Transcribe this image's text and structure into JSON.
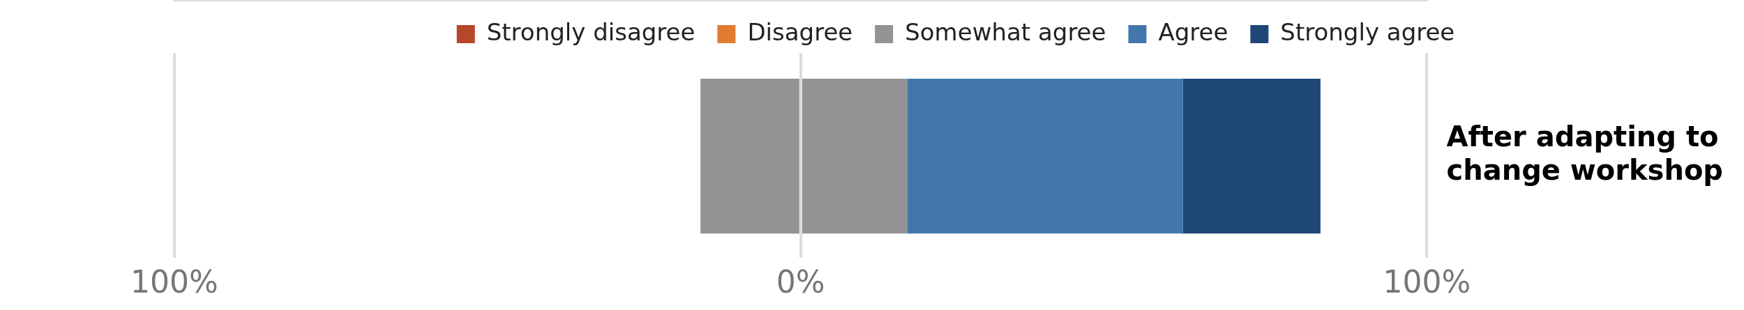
{
  "chart_data": {
    "type": "bar",
    "orientation": "horizontal",
    "stacked": true,
    "categories": [
      "After adapting to change workshop"
    ],
    "series": [
      {
        "name": "Strongly disagree",
        "color": "#b7472a",
        "values": [
          0
        ]
      },
      {
        "name": "Disagree",
        "color": "#e07b32",
        "values": [
          0
        ]
      },
      {
        "name": "Somewhat agree",
        "color": "#939393",
        "values": [
          -16
        ]
      },
      {
        "color": "#939393",
        "values": [
          17
        ]
      },
      {
        "name": "Agree",
        "color": "#4277ab",
        "values": [
          44
        ]
      },
      {
        "name": "Strongly agree",
        "color": "#1e4777",
        "values": [
          22
        ]
      }
    ],
    "xlim": [
      -100,
      100
    ],
    "xticks": [
      {
        "value": -100,
        "label": "100%"
      },
      {
        "value": 0,
        "label": "0%"
      },
      {
        "value": 100,
        "label": "100%"
      }
    ],
    "grid": "x",
    "legend": "top"
  }
}
